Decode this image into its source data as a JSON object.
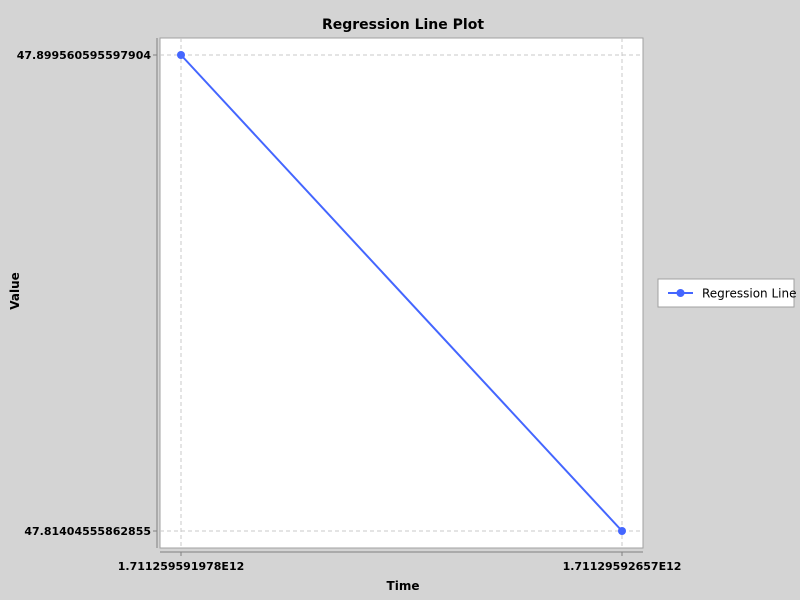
{
  "chart_data": {
    "type": "line",
    "title": "Regression Line Plot",
    "xlabel": "Time",
    "ylabel": "Value",
    "x_tick_labels": [
      "1.711259591978E12",
      "1.71129592657E12"
    ],
    "y_tick_labels": [
      "47.899560595597904",
      "47.81404555862855"
    ],
    "series": [
      {
        "name": "Regression Line",
        "color": "#4466ff",
        "x": [
          1711259591978,
          1711295926570
        ],
        "y": [
          47.899560595597904,
          47.81404555862855
        ]
      }
    ],
    "grid": true,
    "legend": "right"
  }
}
